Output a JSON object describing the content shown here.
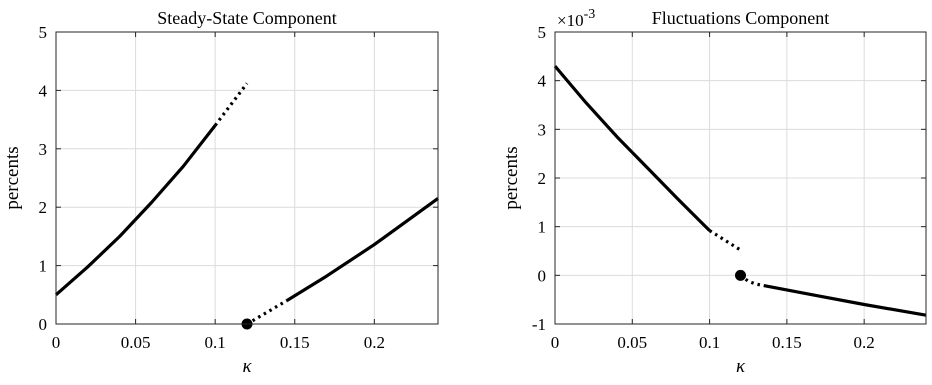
{
  "chart_data": [
    {
      "type": "line",
      "title": "Steady-State Component",
      "xlabel": "κ",
      "ylabel": "percents",
      "xlim": [
        0,
        0.24
      ],
      "ylim": [
        0,
        5
      ],
      "xticks": [
        0,
        0.05,
        0.1,
        0.15,
        0.2
      ],
      "xtick_labels": [
        "0",
        "0.05",
        "0.1",
        "0.15",
        "0.2"
      ],
      "yticks": [
        0,
        1,
        2,
        3,
        4,
        5
      ],
      "ytick_labels": [
        "0",
        "1",
        "2",
        "3",
        "4",
        "5"
      ],
      "grid": true,
      "exponent_label": "",
      "series": [
        {
          "style": "solid",
          "x": [
            0,
            0.02,
            0.04,
            0.06,
            0.08,
            0.1
          ],
          "y": [
            0.5,
            0.98,
            1.5,
            2.08,
            2.7,
            3.4
          ]
        },
        {
          "style": "dotted",
          "x": [
            0.1,
            0.105,
            0.11,
            0.115,
            0.12
          ],
          "y": [
            3.4,
            3.58,
            3.76,
            3.94,
            4.12
          ]
        },
        {
          "style": "dotted",
          "x": [
            0.12,
            0.13,
            0.14,
            0.145
          ],
          "y": [
            0.0,
            0.16,
            0.32,
            0.4
          ]
        },
        {
          "style": "solid",
          "x": [
            0.145,
            0.17,
            0.2,
            0.24
          ],
          "y": [
            0.4,
            0.82,
            1.36,
            2.15
          ]
        }
      ],
      "markers": [
        {
          "x": 0.12,
          "y": 0.0
        }
      ]
    },
    {
      "type": "line",
      "title": "Fluctuations Component",
      "xlabel": "κ",
      "ylabel": "percents",
      "xlim": [
        0,
        0.24
      ],
      "ylim": [
        -1,
        5
      ],
      "xticks": [
        0,
        0.05,
        0.1,
        0.15,
        0.2
      ],
      "xtick_labels": [
        "0",
        "0.05",
        "0.1",
        "0.15",
        "0.2"
      ],
      "yticks": [
        -1,
        0,
        1,
        2,
        3,
        4,
        5
      ],
      "ytick_labels": [
        "-1",
        "0",
        "1",
        "2",
        "3",
        "4",
        "5"
      ],
      "grid": true,
      "exponent_label": "×10",
      "exponent_power": "-3",
      "series": [
        {
          "style": "solid",
          "x": [
            0,
            0.02,
            0.04,
            0.06,
            0.08,
            0.1
          ],
          "y": [
            4.3,
            3.55,
            2.85,
            2.2,
            1.55,
            0.92
          ]
        },
        {
          "style": "dotted",
          "x": [
            0.1,
            0.105,
            0.11,
            0.115,
            0.12
          ],
          "y": [
            0.92,
            0.82,
            0.72,
            0.62,
            0.52
          ]
        },
        {
          "style": "dotted",
          "x": [
            0.12,
            0.125,
            0.13,
            0.135
          ],
          "y": [
            0.0,
            -0.12,
            -0.18,
            -0.21
          ]
        },
        {
          "style": "solid",
          "x": [
            0.135,
            0.17,
            0.2,
            0.24
          ],
          "y": [
            -0.21,
            -0.42,
            -0.6,
            -0.82
          ]
        }
      ],
      "markers": [
        {
          "x": 0.12,
          "y": 0.0
        }
      ]
    }
  ]
}
